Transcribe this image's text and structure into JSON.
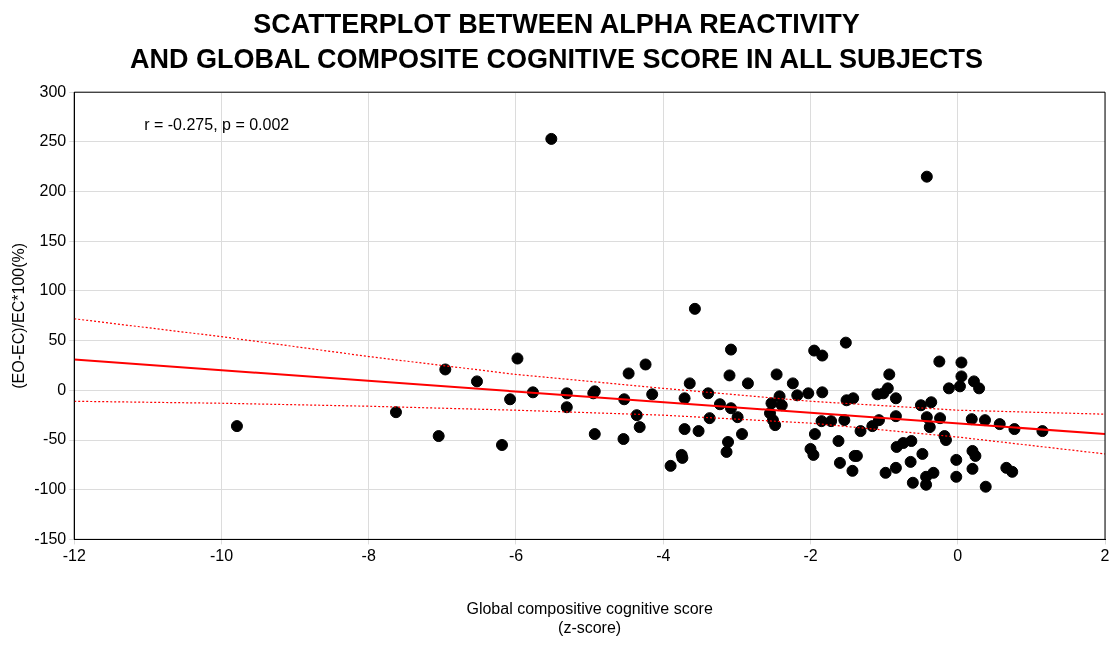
{
  "chart_data": {
    "type": "scatter",
    "title": "SCATTERPLOT BETWEEN ALPHA REACTIVITY\nAND GLOBAL COMPOSITE COGNITIVE SCORE IN ALL SUBJECTS",
    "xlabel": "Global compositive cognitive score\n(z-score)",
    "ylabel": "(EO-EC)/EC*100(%)",
    "annotations": [
      "r = -0.275, p = 0.002"
    ],
    "xlim": [
      -12,
      2
    ],
    "xticks": [
      -12,
      -10,
      -8,
      -6,
      -4,
      -2,
      0,
      2
    ],
    "ylim": [
      -150,
      300
    ],
    "yticks": [
      -150,
      -100,
      -50,
      0,
      50,
      100,
      150,
      200,
      250,
      300
    ],
    "grid": true,
    "legend": false,
    "marker": "circle",
    "series": [
      {
        "type": "scatter",
        "color": "#000000",
        "x": [
          -5.52,
          -0.42,
          -3.57,
          -9.79,
          -7.63,
          -7.05,
          -6.96,
          -6.53,
          -6.19,
          -5.98,
          -6.08,
          -5.77,
          -5.31,
          -5.31,
          -4.93,
          -4.95,
          -4.93,
          -4.54,
          -4.53,
          -4.47,
          -4.36,
          -4.32,
          -4.24,
          -4.15,
          -3.9,
          -3.75,
          -3.74,
          -3.71,
          -3.71,
          -3.64,
          -3.52,
          -3.39,
          -3.37,
          -3.23,
          -3.14,
          -3.12,
          -3.1,
          -3.08,
          -3.08,
          -2.99,
          -2.93,
          -2.85,
          -2.46,
          -2.53,
          -2.42,
          -2.39,
          -2.55,
          -2.51,
          -2.48,
          -2.24,
          -2.18,
          -2.03,
          -2.0,
          -1.96,
          -1.94,
          -1.95,
          -1.84,
          -1.84,
          -1.85,
          -1.72,
          -1.62,
          -1.6,
          -1.54,
          -1.52,
          -1.51,
          -1.42,
          -1.43,
          -1.4,
          -1.37,
          -1.32,
          -1.16,
          -1.09,
          -1.01,
          -0.95,
          -0.93,
          -0.84,
          -1.07,
          -0.84,
          -0.98,
          -0.84,
          -0.83,
          -0.74,
          -0.63,
          -0.64,
          -0.61,
          -0.5,
          -0.48,
          -0.43,
          -0.43,
          -0.42,
          -0.38,
          -0.36,
          -0.33,
          -0.25,
          -0.24,
          -0.18,
          -0.16,
          -0.12,
          -0.02,
          -0.02,
          0.03,
          0.05,
          0.05,
          0.19,
          0.2,
          0.24,
          0.2,
          0.22,
          0.29,
          0.37,
          0.38,
          0.57,
          0.66,
          0.74,
          0.77,
          1.15
        ],
        "values": [
          253,
          215,
          82,
          -36,
          -22,
          -46,
          21,
          9,
          -55,
          32,
          -9,
          -2,
          -3,
          -17,
          -1,
          -3,
          -44,
          -49,
          -9,
          17,
          -25,
          -37,
          26,
          -4,
          -76,
          -65,
          -68,
          -39,
          -8,
          7,
          -41,
          -3,
          -28,
          -14,
          -62,
          -52,
          15,
          41,
          -18,
          -27,
          -44,
          7,
          16,
          -13,
          -6,
          -15,
          -23,
          -30,
          -35,
          7,
          -5,
          -3,
          -59,
          -65,
          -44,
          40,
          35,
          -2,
          -31,
          -31,
          -51,
          -73,
          -30,
          48,
          -10,
          -8,
          -81,
          -66,
          -66,
          -41,
          -36,
          -4,
          -3,
          2,
          16,
          -8,
          -30,
          -26,
          -83,
          -78,
          -57,
          -53,
          -51,
          -72,
          -93,
          -15,
          -64,
          -87,
          -95,
          -27,
          -37,
          -12,
          -83,
          29,
          -28,
          -46,
          -50,
          2,
          -70,
          -87,
          4,
          14,
          28,
          -29,
          -61,
          -66,
          -79,
          9,
          2,
          -30,
          -97,
          -34,
          -78,
          -82,
          -39,
          -41
        ]
      },
      {
        "type": "line",
        "color": "#ff0000",
        "line_style": "solid",
        "marker": "none",
        "x": [
          -12,
          2
        ],
        "values": [
          31,
          -44
        ]
      },
      {
        "type": "line",
        "color": "#ff0000",
        "line_style": "dotted",
        "marker": "none",
        "x": [
          -12,
          -10,
          -8,
          -6,
          -4,
          -2,
          0,
          2
        ],
        "values": [
          72,
          54,
          34,
          16,
          2,
          -11,
          -20,
          -24
        ]
      },
      {
        "type": "line",
        "color": "#ff0000",
        "line_style": "dotted",
        "marker": "none",
        "x": [
          -12,
          -10,
          -8,
          -6,
          -4,
          -2,
          0,
          2
        ],
        "values": [
          -11,
          -13,
          -16,
          -20,
          -25,
          -33,
          -47,
          -64
        ]
      }
    ]
  }
}
